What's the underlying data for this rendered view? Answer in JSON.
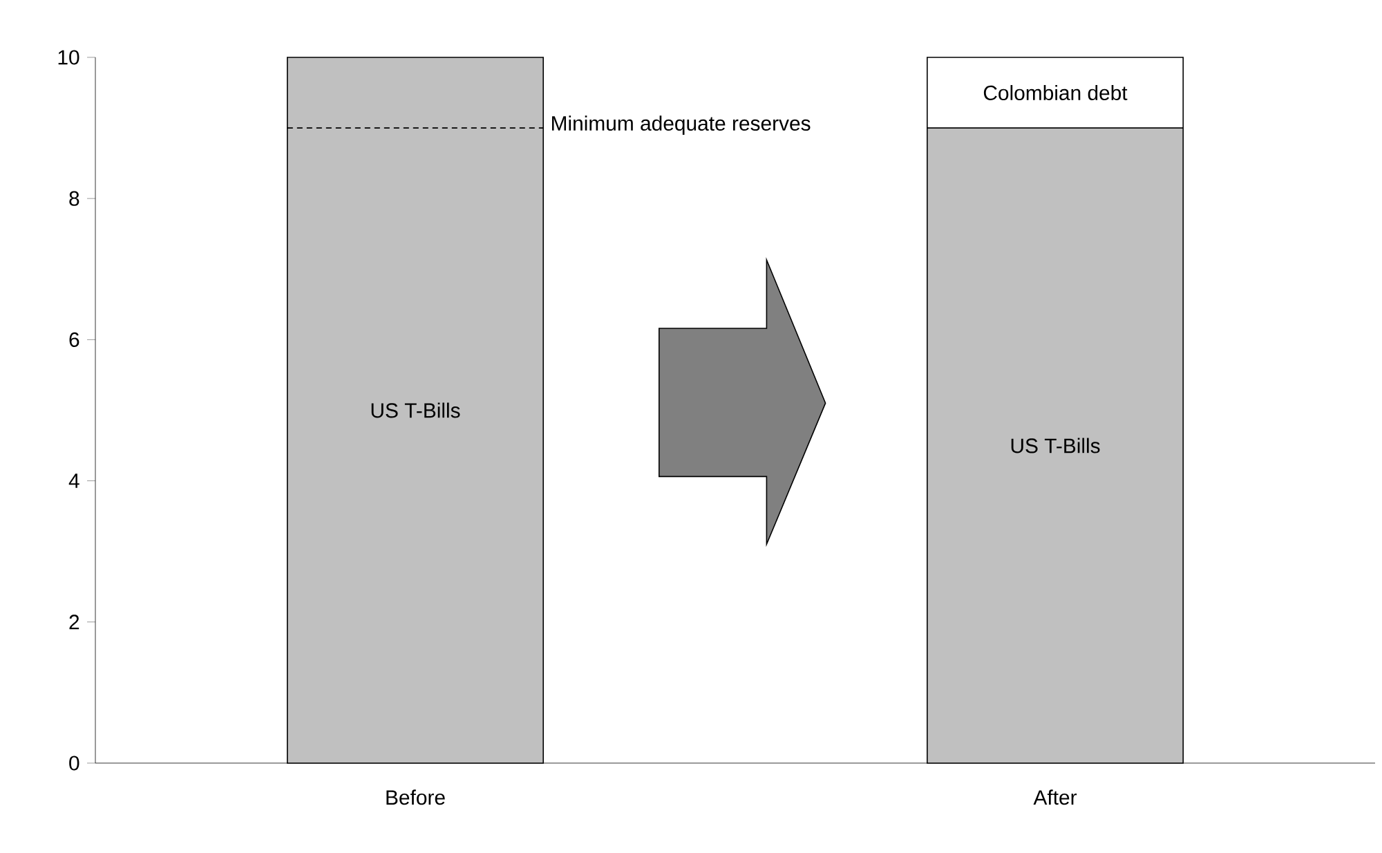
{
  "chart_data": {
    "type": "bar",
    "stacked": true,
    "categories": [
      "Before",
      "After"
    ],
    "series": [
      {
        "name": "US T-Bills",
        "color": "#c0c0c0",
        "values": [
          10,
          9
        ]
      },
      {
        "name": "Colombian debt",
        "color": "#ffffff",
        "values": [
          null,
          1
        ]
      }
    ],
    "ylim": [
      0,
      10
    ],
    "yticks": [
      0,
      2,
      4,
      6,
      8,
      10
    ],
    "ref_lines": [
      {
        "axis": "y",
        "value": 9,
        "label": "Minimum adequate reserves",
        "line_style": "dashed",
        "color": "#000000"
      }
    ],
    "grid": false
  }
}
